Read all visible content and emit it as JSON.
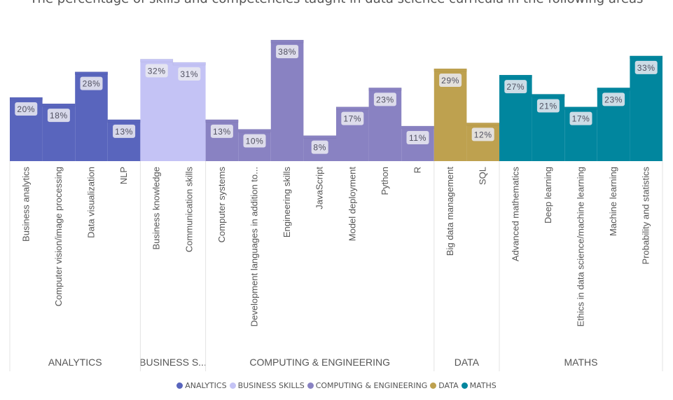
{
  "header": {
    "text": "The percentage of skills and competencies taught in data science curricula in the following areas"
  },
  "chart_data": {
    "type": "bar",
    "y_unit": "%",
    "groups": [
      {
        "name": "ANALYTICS",
        "color": "#5965bd",
        "categories": [
          "Business analytics",
          "Computer vision/image processing",
          "Data visualization",
          "NLP"
        ],
        "values": [
          20,
          18,
          28,
          13
        ]
      },
      {
        "name": "BUSINESS S...",
        "color": "#c4c3f5",
        "categories": [
          "Business knowledge",
          "Communication skills"
        ],
        "values": [
          32,
          31
        ]
      },
      {
        "name": "COMPUTING & ENGINEERING",
        "color": "#8982c2",
        "categories": [
          "Computer systems",
          "Development languages in addition to...",
          "Engineering skills",
          "JavaScript",
          "Model deployment",
          "Python",
          "R"
        ],
        "values": [
          13,
          10,
          38,
          8,
          17,
          23,
          11
        ]
      },
      {
        "name": "DATA",
        "color": "#bea14f",
        "categories": [
          "Big data management",
          "SQL"
        ],
        "values": [
          29,
          12
        ]
      },
      {
        "name": "MATHS",
        "color": "#01869e",
        "categories": [
          "Advanced mathematics",
          "Deep learning",
          "Ethics in data science/machine learning",
          "Machine learning",
          "Probability and statistics"
        ],
        "values": [
          27,
          21,
          17,
          23,
          33
        ]
      }
    ],
    "legend": {
      "position": "bottom",
      "entries": [
        {
          "label": "ANALYTICS",
          "color": "#5965bd"
        },
        {
          "label": "BUSINESS SKILLS",
          "color": "#c4c3f5"
        },
        {
          "label": "COMPUTING & ENGINEERING",
          "color": "#8982c2"
        },
        {
          "label": "DATA",
          "color": "#bea14f"
        },
        {
          "label": "MATHS",
          "color": "#01869e"
        }
      ]
    },
    "ylim": [
      0,
      40
    ]
  }
}
